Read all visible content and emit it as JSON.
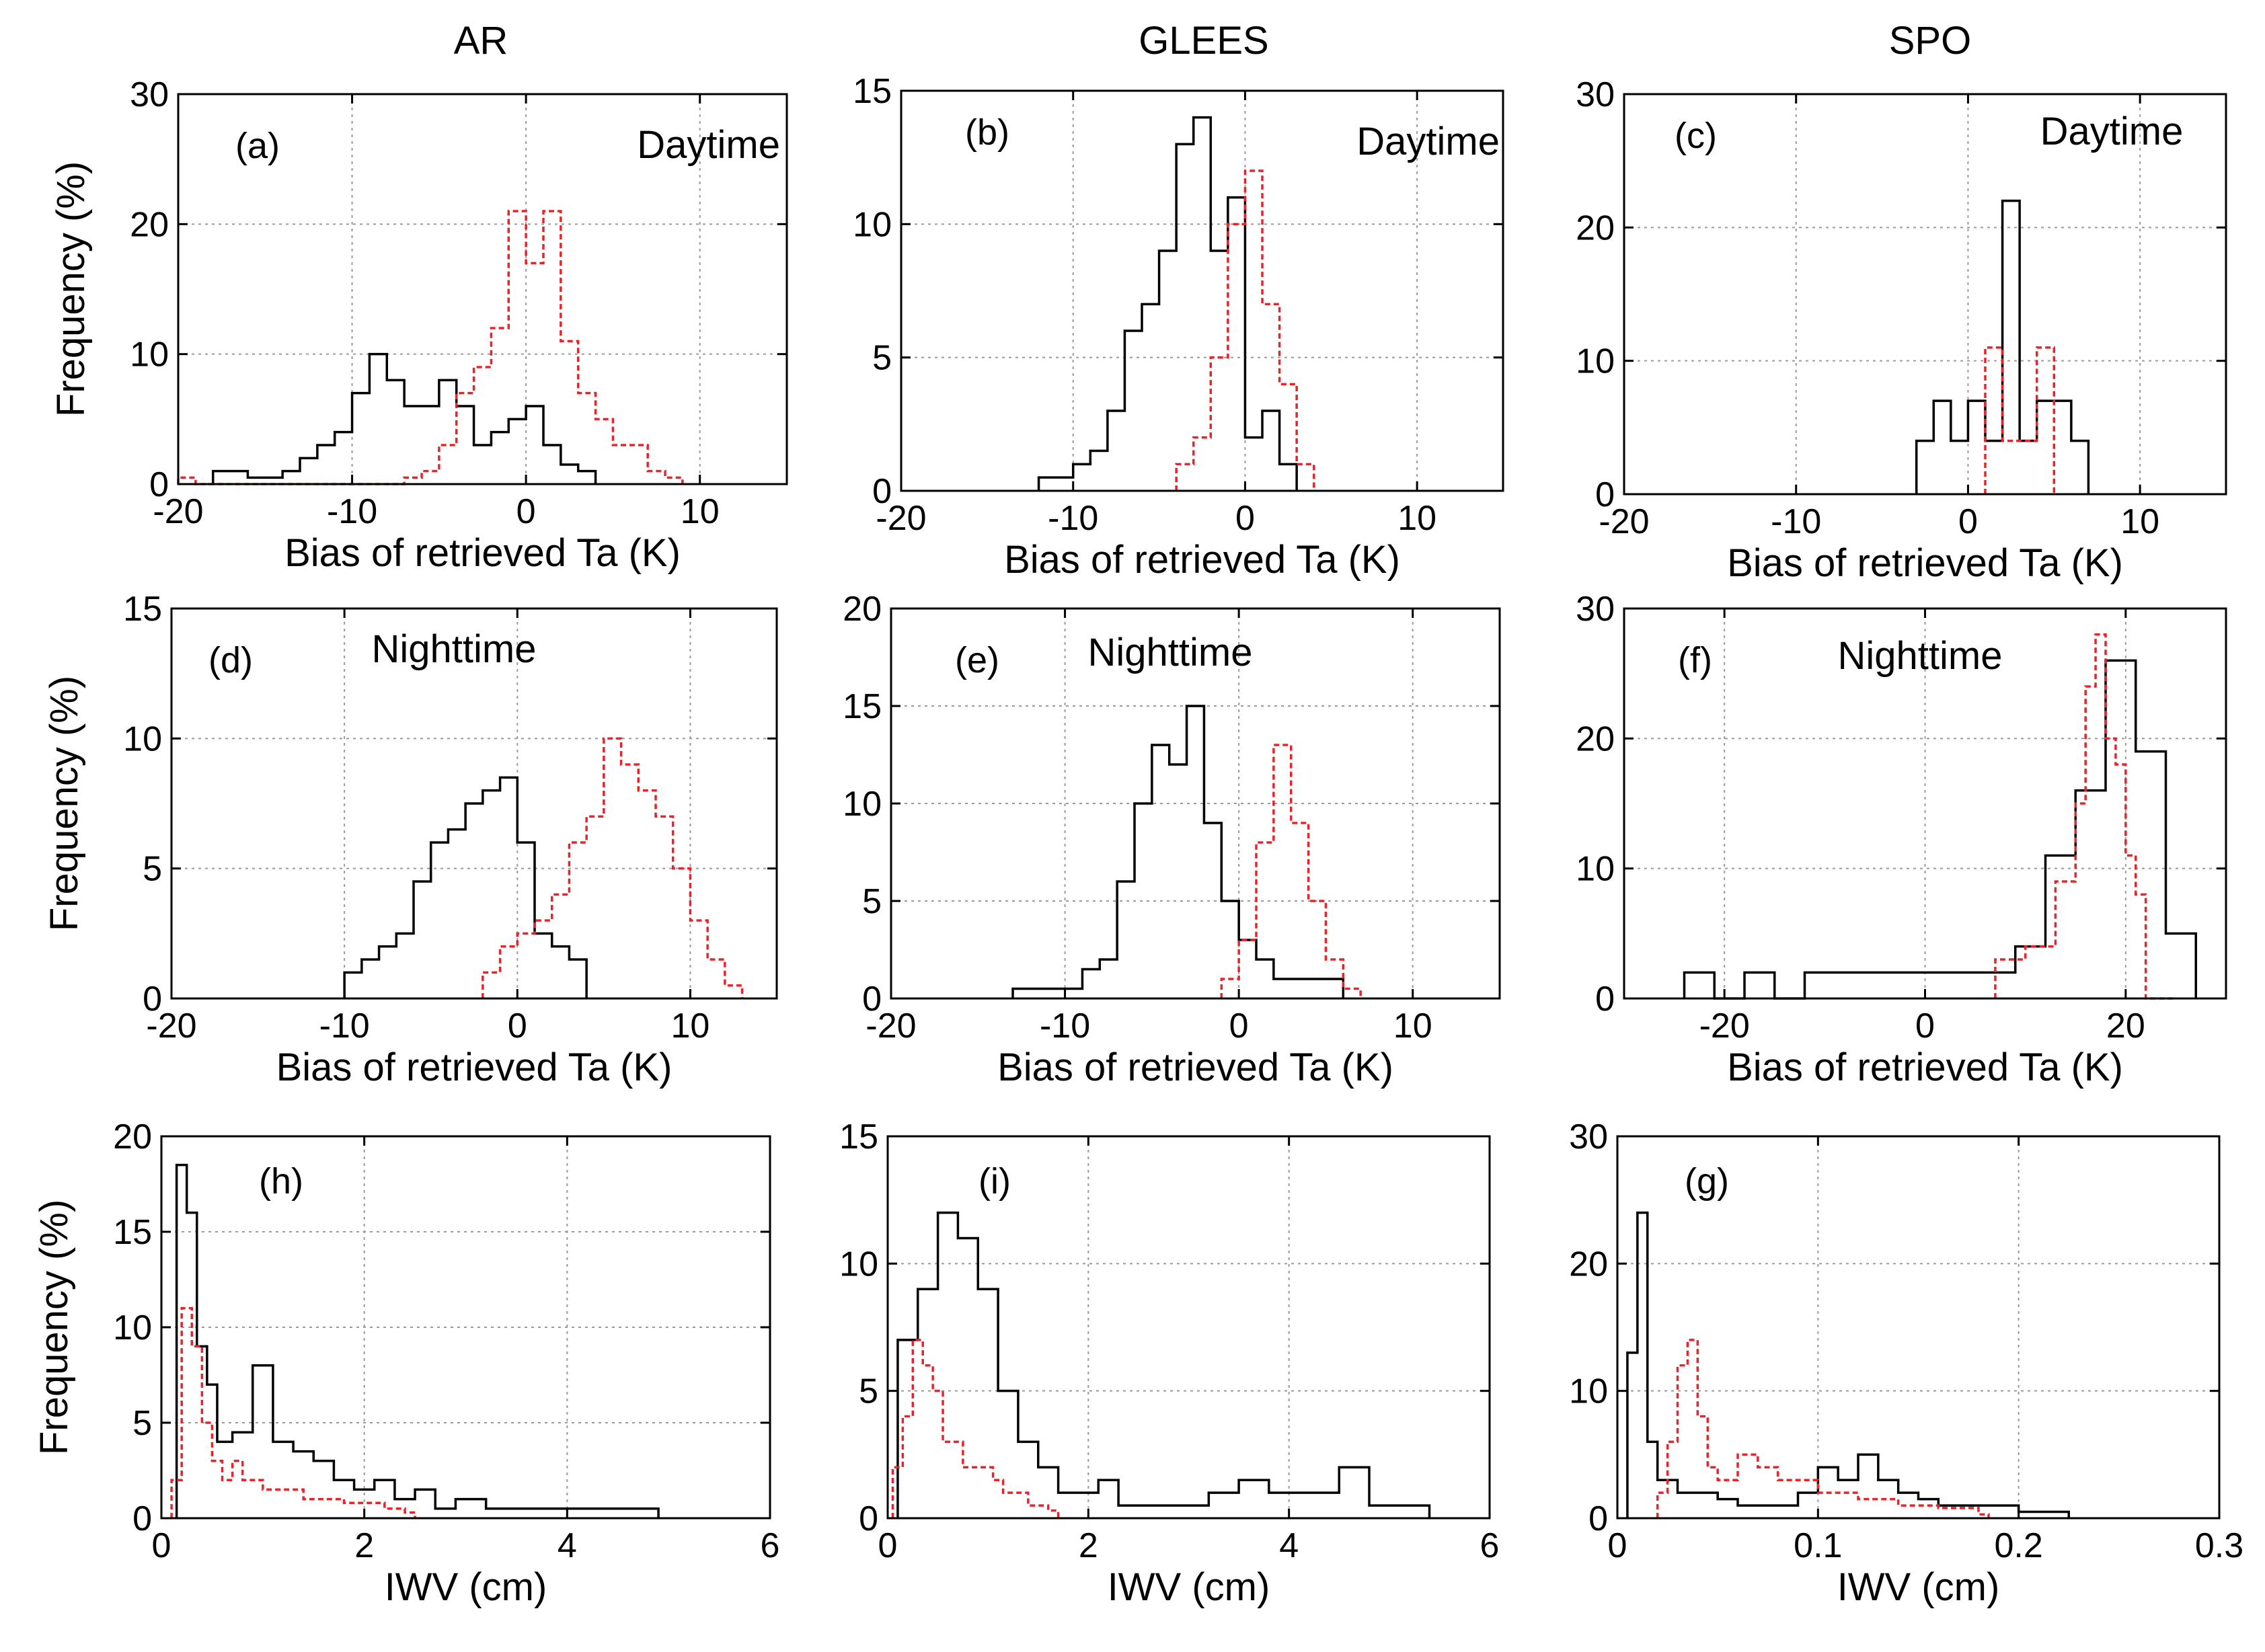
{
  "column_titles": [
    "AR",
    "GLEES",
    "SPO"
  ],
  "chart_data": [
    {
      "id": "a",
      "type": "step-histogram",
      "panel_label": "(a)",
      "annotation": "Daytime",
      "ylabel": "Frequency (%)",
      "xlabel": "Bias of retrieved Ta (K)",
      "xlim": [
        -20,
        15
      ],
      "ylim": [
        0,
        30
      ],
      "xticks": [
        -20,
        -10,
        0,
        10
      ],
      "yticks": [
        0,
        10,
        20,
        30
      ],
      "series": [
        {
          "name": "black",
          "x": [
            -18,
            -17,
            -16,
            -15,
            -14,
            -13,
            -12,
            -11,
            -10,
            -9,
            -8,
            -7,
            -6,
            -5,
            -4,
            -3,
            -2,
            -1,
            0,
            1,
            2,
            3
          ],
          "y": [
            1,
            1,
            0.5,
            0.5,
            1,
            2,
            3,
            4,
            7,
            10,
            8,
            6,
            6,
            8,
            6,
            3,
            4,
            5,
            6,
            3,
            1.5,
            1
          ]
        },
        {
          "name": "red",
          "x": [
            -20,
            -19,
            -8,
            -7,
            -6,
            -5,
            -4,
            -3,
            -2,
            -1,
            0,
            1,
            2,
            3,
            4,
            5,
            6,
            7,
            8
          ],
          "y": [
            0.5,
            0,
            0,
            0.5,
            1,
            3,
            7,
            9,
            12,
            21,
            17,
            21,
            11,
            7,
            5,
            3,
            3,
            1,
            0.5
          ]
        }
      ]
    },
    {
      "id": "b",
      "type": "step-histogram",
      "panel_label": "(b)",
      "annotation": "Daytime",
      "xlabel": "Bias of retrieved Ta (K)",
      "xlim": [
        -20,
        15
      ],
      "ylim": [
        0,
        15
      ],
      "xticks": [
        -20,
        -10,
        0,
        10
      ],
      "yticks": [
        0,
        5,
        10,
        15
      ],
      "series": [
        {
          "name": "black",
          "x": [
            -12,
            -11,
            -10,
            -9,
            -8,
            -7,
            -6,
            -5,
            -4,
            -3,
            -2,
            -1,
            0,
            1,
            2
          ],
          "y": [
            0.5,
            0.5,
            1,
            1.5,
            3,
            6,
            7,
            9,
            13,
            14,
            9,
            11,
            2,
            3,
            1
          ]
        },
        {
          "name": "red",
          "x": [
            -4,
            -3,
            -2,
            -1,
            0,
            1,
            2,
            3
          ],
          "y": [
            1,
            2,
            5,
            10,
            12,
            7,
            4,
            1
          ]
        }
      ]
    },
    {
      "id": "c",
      "type": "step-histogram",
      "panel_label": "(c)",
      "annotation": "Daytime",
      "xlabel": "Bias of retrieved Ta (K)",
      "xlim": [
        -20,
        15
      ],
      "ylim": [
        0,
        30
      ],
      "xticks": [
        -20,
        -10,
        0,
        10
      ],
      "yticks": [
        0,
        10,
        20,
        30
      ],
      "series": [
        {
          "name": "black",
          "x": [
            -3,
            -2,
            -1,
            0,
            1,
            2,
            3,
            4,
            5,
            6
          ],
          "y": [
            4,
            7,
            4,
            7,
            4,
            22,
            4,
            7,
            7,
            4
          ]
        },
        {
          "name": "red",
          "x": [
            1,
            2,
            3,
            4
          ],
          "y": [
            11,
            4,
            4,
            11
          ]
        }
      ]
    },
    {
      "id": "d",
      "type": "step-histogram",
      "panel_label": "(d)",
      "annotation": "Nighttime",
      "ylabel": "Frequency (%)",
      "xlabel": "Bias of retrieved Ta (K)",
      "xlim": [
        -20,
        15
      ],
      "ylim": [
        0,
        15
      ],
      "xticks": [
        -20,
        -10,
        0,
        10
      ],
      "yticks": [
        0,
        5,
        10,
        15
      ],
      "series": [
        {
          "name": "black",
          "x": [
            -10,
            -9,
            -8,
            -7,
            -6,
            -5,
            -4,
            -3,
            -2,
            -1,
            0,
            1,
            2,
            3
          ],
          "y": [
            1,
            1.5,
            2,
            2.5,
            4.5,
            6,
            6.5,
            7.5,
            8,
            8.5,
            6,
            2.5,
            2,
            1.5
          ]
        },
        {
          "name": "red",
          "x": [
            -2,
            -1,
            0,
            1,
            2,
            3,
            4,
            5,
            6,
            7,
            8,
            9,
            10,
            11,
            12
          ],
          "y": [
            1,
            2,
            2.5,
            3,
            4,
            6,
            7,
            10,
            9,
            8,
            7,
            5,
            3,
            1.5,
            0.5
          ]
        }
      ]
    },
    {
      "id": "e",
      "type": "step-histogram",
      "panel_label": "(e)",
      "annotation": "Nighttime",
      "xlabel": "Bias of retrieved Ta (K)",
      "xlim": [
        -20,
        15
      ],
      "ylim": [
        0,
        20
      ],
      "xticks": [
        -20,
        -10,
        0,
        10
      ],
      "yticks": [
        0,
        5,
        10,
        15,
        20
      ],
      "series": [
        {
          "name": "black",
          "x": [
            -13,
            -9,
            -8,
            -7,
            -6,
            -5,
            -4,
            -3,
            -2,
            -1,
            0,
            1,
            2
          ],
          "y": [
            0.5,
            1.5,
            2,
            6,
            10,
            13,
            12,
            15,
            9,
            5,
            3,
            2,
            1
          ]
        },
        {
          "name": "red",
          "x": [
            -1,
            0,
            1,
            2,
            3,
            4,
            5,
            6
          ],
          "y": [
            1,
            3,
            8,
            13,
            9,
            5,
            2,
            0.5
          ]
        }
      ]
    },
    {
      "id": "f",
      "type": "step-histogram",
      "panel_label": "(f)",
      "annotation": "Nighttime",
      "xlabel": "Bias of retrieved Ta (K)",
      "xlim": [
        -30,
        30
      ],
      "ylim": [
        0,
        30
      ],
      "xticks": [
        -20,
        0,
        20
      ],
      "yticks": [
        0,
        10,
        20,
        30
      ],
      "series": [
        {
          "name": "black",
          "x": [
            -24,
            -21,
            -18,
            -15,
            -12,
            -3,
            6,
            9,
            12,
            15,
            18,
            21,
            24
          ],
          "y": [
            2,
            0,
            2,
            0,
            2,
            2,
            2,
            4,
            11,
            16,
            26,
            19,
            5
          ]
        },
        {
          "name": "red",
          "x": [
            7,
            10,
            13,
            15,
            16,
            17,
            18,
            19,
            20,
            21,
            22
          ],
          "y": [
            3,
            4,
            9,
            15,
            24,
            28,
            20,
            18,
            11,
            8,
            0
          ]
        }
      ]
    },
    {
      "id": "h",
      "type": "step-histogram",
      "panel_label": "(h)",
      "ylabel": "Frequency (%)",
      "xlabel": "IWV (cm)",
      "xlim": [
        0,
        6
      ],
      "ylim": [
        0,
        20
      ],
      "xticks": [
        0,
        2,
        4,
        6
      ],
      "yticks": [
        0,
        5,
        10,
        15,
        20
      ],
      "series": [
        {
          "name": "black",
          "x": [
            0.15,
            0.25,
            0.35,
            0.45,
            0.55,
            0.7,
            0.9,
            1.1,
            1.3,
            1.5,
            1.7,
            1.9,
            2.1,
            2.3,
            2.5,
            2.7,
            2.9,
            3.2,
            3.5,
            3.8,
            4.2,
            4.8
          ],
          "y": [
            18.5,
            16,
            9,
            7,
            4,
            4.5,
            8,
            4,
            3.5,
            3,
            2,
            1.5,
            2,
            1,
            1.5,
            0.5,
            1,
            0.5,
            0.5,
            0.5,
            0.5,
            0.5
          ]
        },
        {
          "name": "red",
          "x": [
            0.1,
            0.2,
            0.3,
            0.4,
            0.5,
            0.6,
            0.7,
            0.8,
            0.9,
            1.0,
            1.2,
            1.4,
            1.6,
            1.8,
            2.0,
            2.2,
            2.4
          ],
          "y": [
            2,
            11,
            9,
            5,
            3,
            2,
            3,
            2,
            2,
            1.5,
            1.5,
            1,
            1,
            0.8,
            0.8,
            0.5,
            0.3
          ]
        }
      ]
    },
    {
      "id": "i",
      "type": "step-histogram",
      "panel_label": "(i)",
      "xlabel": "IWV (cm)",
      "xlim": [
        0,
        6
      ],
      "ylim": [
        0,
        15
      ],
      "xticks": [
        0,
        2,
        4,
        6
      ],
      "yticks": [
        0,
        5,
        10,
        15
      ],
      "series": [
        {
          "name": "black",
          "x": [
            0.1,
            0.3,
            0.5,
            0.7,
            0.9,
            1.1,
            1.3,
            1.5,
            1.7,
            2.1,
            2.3,
            2.6,
            3.2,
            3.5,
            3.8,
            4.1,
            4.5,
            4.8,
            5.2
          ],
          "y": [
            7,
            9,
            12,
            11,
            9,
            5,
            3,
            2,
            1,
            1.5,
            0.5,
            0.5,
            1,
            1.5,
            1,
            1,
            2,
            0.5,
            0.5
          ]
        },
        {
          "name": "red",
          "x": [
            0.05,
            0.15,
            0.25,
            0.35,
            0.45,
            0.55,
            0.65,
            0.75,
            0.85,
            0.95,
            1.05,
            1.15,
            1.25,
            1.4,
            1.6
          ],
          "y": [
            2,
            4,
            7,
            6,
            5,
            3,
            3,
            2,
            2,
            2,
            1.5,
            1,
            1,
            0.5,
            0.3
          ]
        }
      ]
    },
    {
      "id": "g",
      "type": "step-histogram",
      "panel_label": "(g)",
      "xlabel": "IWV (cm)",
      "xlim": [
        0,
        0.3
      ],
      "ylim": [
        0,
        30
      ],
      "xticks": [
        0,
        0.1,
        0.2,
        0.3
      ],
      "yticks": [
        0,
        10,
        20,
        30
      ],
      "series": [
        {
          "name": "black",
          "x": [
            0.005,
            0.01,
            0.015,
            0.02,
            0.03,
            0.04,
            0.05,
            0.06,
            0.08,
            0.09,
            0.1,
            0.11,
            0.12,
            0.13,
            0.14,
            0.15,
            0.16,
            0.17,
            0.18,
            0.2,
            0.22
          ],
          "y": [
            13,
            24,
            6,
            3,
            2,
            2,
            1.5,
            1,
            1,
            2,
            4,
            3,
            5,
            3,
            2,
            1.5,
            1,
            1,
            1,
            0.5,
            0.5
          ]
        },
        {
          "name": "red",
          "x": [
            0.02,
            0.025,
            0.03,
            0.035,
            0.04,
            0.045,
            0.05,
            0.06,
            0.07,
            0.08,
            0.1,
            0.12,
            0.14,
            0.16,
            0.18
          ],
          "y": [
            2,
            6,
            12,
            14,
            8,
            4,
            3,
            5,
            4,
            3,
            2,
            1.5,
            1,
            0.8,
            0.3
          ]
        }
      ]
    }
  ]
}
